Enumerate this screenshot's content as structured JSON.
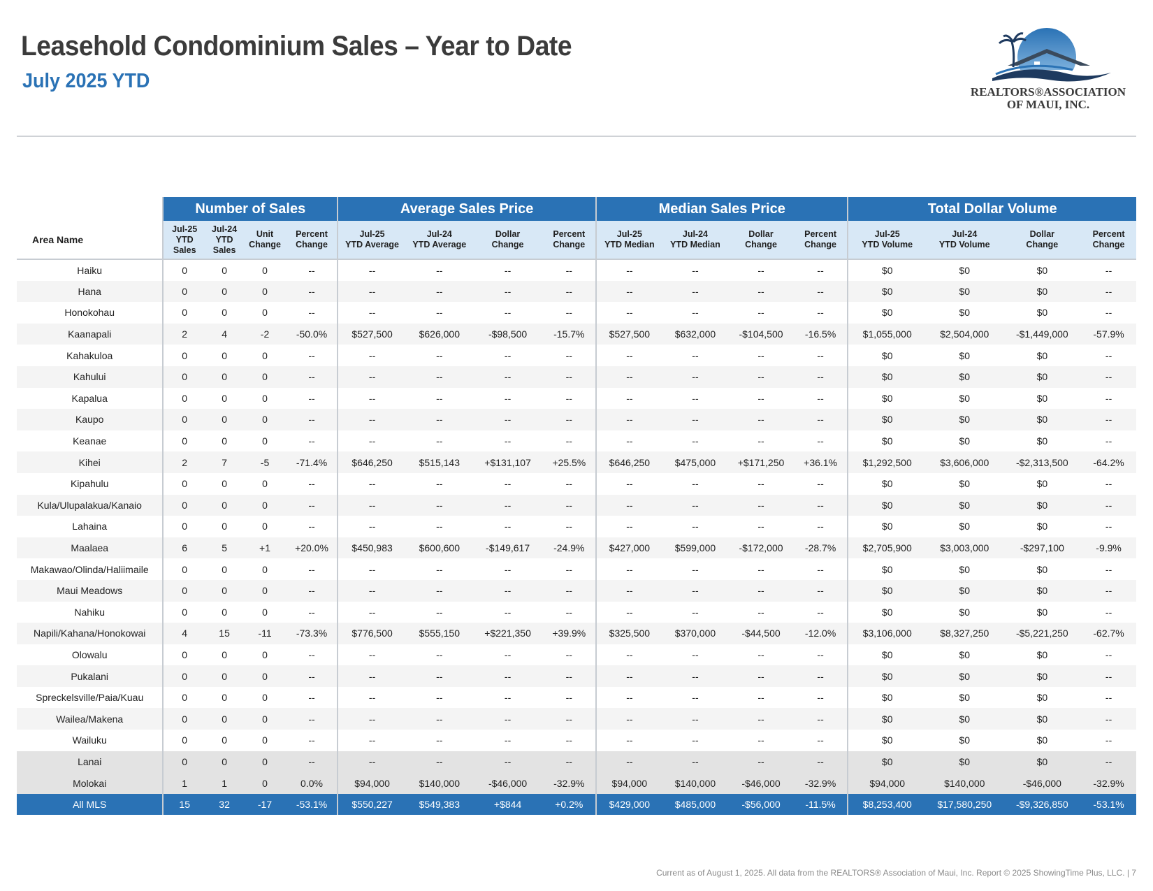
{
  "header": {
    "title": "Leasehold Condominium Sales – Year to Date",
    "subtitle": "July 2025 YTD"
  },
  "logo": {
    "line1": "REALTORS®ASSOCIATION",
    "line2": "OF MAUI, INC.",
    "colors": {
      "sky": "#2a72b5",
      "roof": "#3a4a5c",
      "wave": "#1e3a5f"
    }
  },
  "table": {
    "groups": [
      "Number of Sales",
      "Average Sales Price",
      "Median Sales Price",
      "Total Dollar Volume"
    ],
    "area_header": "Area Name",
    "columns": [
      [
        "Jul-25",
        "YTD",
        "Sales"
      ],
      [
        "Jul-24",
        "YTD",
        "Sales"
      ],
      [
        "Unit",
        "Change"
      ],
      [
        "Percent",
        "Change"
      ],
      [
        "Jul-25",
        "YTD Average"
      ],
      [
        "Jul-24",
        "YTD Average"
      ],
      [
        "Dollar",
        "Change"
      ],
      [
        "Percent",
        "Change"
      ],
      [
        "Jul-25",
        "YTD Median"
      ],
      [
        "Jul-24",
        "YTD Median"
      ],
      [
        "Dollar",
        "Change"
      ],
      [
        "Percent",
        "Change"
      ],
      [
        "Jul-25",
        "YTD Volume"
      ],
      [
        "Jul-24",
        "YTD Volume"
      ],
      [
        "Dollar",
        "Change"
      ],
      [
        "Percent",
        "Change"
      ]
    ],
    "rows": [
      [
        "Haiku",
        "0",
        "0",
        "0",
        "--",
        "--",
        "--",
        "--",
        "--",
        "--",
        "--",
        "--",
        "--",
        "$0",
        "$0",
        "$0",
        "--"
      ],
      [
        "Hana",
        "0",
        "0",
        "0",
        "--",
        "--",
        "--",
        "--",
        "--",
        "--",
        "--",
        "--",
        "--",
        "$0",
        "$0",
        "$0",
        "--"
      ],
      [
        "Honokohau",
        "0",
        "0",
        "0",
        "--",
        "--",
        "--",
        "--",
        "--",
        "--",
        "--",
        "--",
        "--",
        "$0",
        "$0",
        "$0",
        "--"
      ],
      [
        "Kaanapali",
        "2",
        "4",
        "-2",
        "-50.0%",
        "$527,500",
        "$626,000",
        "-$98,500",
        "-15.7%",
        "$527,500",
        "$632,000",
        "-$104,500",
        "-16.5%",
        "$1,055,000",
        "$2,504,000",
        "-$1,449,000",
        "-57.9%"
      ],
      [
        "Kahakuloa",
        "0",
        "0",
        "0",
        "--",
        "--",
        "--",
        "--",
        "--",
        "--",
        "--",
        "--",
        "--",
        "$0",
        "$0",
        "$0",
        "--"
      ],
      [
        "Kahului",
        "0",
        "0",
        "0",
        "--",
        "--",
        "--",
        "--",
        "--",
        "--",
        "--",
        "--",
        "--",
        "$0",
        "$0",
        "$0",
        "--"
      ],
      [
        "Kapalua",
        "0",
        "0",
        "0",
        "--",
        "--",
        "--",
        "--",
        "--",
        "--",
        "--",
        "--",
        "--",
        "$0",
        "$0",
        "$0",
        "--"
      ],
      [
        "Kaupo",
        "0",
        "0",
        "0",
        "--",
        "--",
        "--",
        "--",
        "--",
        "--",
        "--",
        "--",
        "--",
        "$0",
        "$0",
        "$0",
        "--"
      ],
      [
        "Keanae",
        "0",
        "0",
        "0",
        "--",
        "--",
        "--",
        "--",
        "--",
        "--",
        "--",
        "--",
        "--",
        "$0",
        "$0",
        "$0",
        "--"
      ],
      [
        "Kihei",
        "2",
        "7",
        "-5",
        "-71.4%",
        "$646,250",
        "$515,143",
        "+$131,107",
        "+25.5%",
        "$646,250",
        "$475,000",
        "+$171,250",
        "+36.1%",
        "$1,292,500",
        "$3,606,000",
        "-$2,313,500",
        "-64.2%"
      ],
      [
        "Kipahulu",
        "0",
        "0",
        "0",
        "--",
        "--",
        "--",
        "--",
        "--",
        "--",
        "--",
        "--",
        "--",
        "$0",
        "$0",
        "$0",
        "--"
      ],
      [
        "Kula/Ulupalakua/Kanaio",
        "0",
        "0",
        "0",
        "--",
        "--",
        "--",
        "--",
        "--",
        "--",
        "--",
        "--",
        "--",
        "$0",
        "$0",
        "$0",
        "--"
      ],
      [
        "Lahaina",
        "0",
        "0",
        "0",
        "--",
        "--",
        "--",
        "--",
        "--",
        "--",
        "--",
        "--",
        "--",
        "$0",
        "$0",
        "$0",
        "--"
      ],
      [
        "Maalaea",
        "6",
        "5",
        "+1",
        "+20.0%",
        "$450,983",
        "$600,600",
        "-$149,617",
        "-24.9%",
        "$427,000",
        "$599,000",
        "-$172,000",
        "-28.7%",
        "$2,705,900",
        "$3,003,000",
        "-$297,100",
        "-9.9%"
      ],
      [
        "Makawao/Olinda/Haliimaile",
        "0",
        "0",
        "0",
        "--",
        "--",
        "--",
        "--",
        "--",
        "--",
        "--",
        "--",
        "--",
        "$0",
        "$0",
        "$0",
        "--"
      ],
      [
        "Maui Meadows",
        "0",
        "0",
        "0",
        "--",
        "--",
        "--",
        "--",
        "--",
        "--",
        "--",
        "--",
        "--",
        "$0",
        "$0",
        "$0",
        "--"
      ],
      [
        "Nahiku",
        "0",
        "0",
        "0",
        "--",
        "--",
        "--",
        "--",
        "--",
        "--",
        "--",
        "--",
        "--",
        "$0",
        "$0",
        "$0",
        "--"
      ],
      [
        "Napili/Kahana/Honokowai",
        "4",
        "15",
        "-11",
        "-73.3%",
        "$776,500",
        "$555,150",
        "+$221,350",
        "+39.9%",
        "$325,500",
        "$370,000",
        "-$44,500",
        "-12.0%",
        "$3,106,000",
        "$8,327,250",
        "-$5,221,250",
        "-62.7%"
      ],
      [
        "Olowalu",
        "0",
        "0",
        "0",
        "--",
        "--",
        "--",
        "--",
        "--",
        "--",
        "--",
        "--",
        "--",
        "$0",
        "$0",
        "$0",
        "--"
      ],
      [
        "Pukalani",
        "0",
        "0",
        "0",
        "--",
        "--",
        "--",
        "--",
        "--",
        "--",
        "--",
        "--",
        "--",
        "$0",
        "$0",
        "$0",
        "--"
      ],
      [
        "Spreckelsville/Paia/Kuau",
        "0",
        "0",
        "0",
        "--",
        "--",
        "--",
        "--",
        "--",
        "--",
        "--",
        "--",
        "--",
        "$0",
        "$0",
        "$0",
        "--"
      ],
      [
        "Wailea/Makena",
        "0",
        "0",
        "0",
        "--",
        "--",
        "--",
        "--",
        "--",
        "--",
        "--",
        "--",
        "--",
        "$0",
        "$0",
        "$0",
        "--"
      ],
      [
        "Wailuku",
        "0",
        "0",
        "0",
        "--",
        "--",
        "--",
        "--",
        "--",
        "--",
        "--",
        "--",
        "--",
        "$0",
        "$0",
        "$0",
        "--"
      ]
    ],
    "region_rows": [
      [
        "Lanai",
        "0",
        "0",
        "0",
        "--",
        "--",
        "--",
        "--",
        "--",
        "--",
        "--",
        "--",
        "--",
        "$0",
        "$0",
        "$0",
        "--"
      ],
      [
        "Molokai",
        "1",
        "1",
        "0",
        "0.0%",
        "$94,000",
        "$140,000",
        "-$46,000",
        "-32.9%",
        "$94,000",
        "$140,000",
        "-$46,000",
        "-32.9%",
        "$94,000",
        "$140,000",
        "-$46,000",
        "-32.9%"
      ]
    ],
    "total_row": [
      "All MLS",
      "15",
      "32",
      "-17",
      "-53.1%",
      "$550,227",
      "$549,383",
      "+$844",
      "+0.2%",
      "$429,000",
      "$485,000",
      "-$56,000",
      "-11.5%",
      "$8,253,400",
      "$17,580,250",
      "-$9,326,850",
      "-53.1%"
    ]
  },
  "footer": "Current as of August 1, 2025. All data from the REALTORS® Association of Maui, Inc. Report © 2025 ShowingTime Plus, LLC.  |  7"
}
